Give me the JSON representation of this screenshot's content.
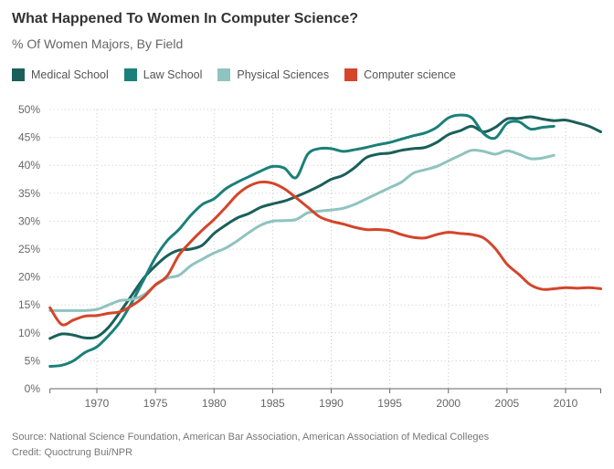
{
  "header": {
    "title": "What Happened To Women In Computer Science?",
    "subtitle": "% Of Women Majors, By Field"
  },
  "footer": {
    "source": "Source: National Science Foundation, American Bar Association, American Association of Medical Colleges",
    "credit": "Credit: Quoctrung Bui/NPR"
  },
  "chart_data": {
    "type": "line",
    "title": "What Happened To Women In Computer Science?",
    "subtitle": "% Of Women Majors, By Field",
    "xlabel": "",
    "ylabel": "",
    "xlim": [
      1966,
      2013
    ],
    "ylim": [
      0,
      50
    ],
    "grid": true,
    "legend_position": "top-left",
    "x_ticks": [
      1970,
      1975,
      1980,
      1985,
      1990,
      1995,
      2000,
      2005,
      2010
    ],
    "x_tick_labels": [
      "1970",
      "1975",
      "1980",
      "1985",
      "1990",
      "1995",
      "2000",
      "2005",
      "2010"
    ],
    "y_ticks": [
      0,
      5,
      10,
      15,
      20,
      25,
      30,
      35,
      40,
      45,
      50
    ],
    "y_tick_labels": [
      "0%",
      "5%",
      "10%",
      "15%",
      "20%",
      "25%",
      "30%",
      "35%",
      "40%",
      "45%",
      "50%"
    ],
    "series": [
      {
        "name": "Medical School",
        "color": "#1a5f5a",
        "x": [
          1966,
          1967,
          1968,
          1969,
          1970,
          1971,
          1972,
          1973,
          1974,
          1975,
          1976,
          1977,
          1978,
          1979,
          1980,
          1981,
          1982,
          1983,
          1984,
          1985,
          1986,
          1987,
          1988,
          1989,
          1990,
          1991,
          1992,
          1993,
          1994,
          1995,
          1996,
          1997,
          1998,
          1999,
          2000,
          2001,
          2002,
          2003,
          2004,
          2005,
          2006,
          2007,
          2008,
          2009,
          2010,
          2011,
          2012,
          2013
        ],
        "values": [
          9.0,
          9.8,
          9.6,
          9.1,
          9.3,
          11.0,
          13.8,
          16.8,
          19.8,
          22.0,
          23.8,
          24.8,
          25.0,
          25.7,
          27.8,
          29.3,
          30.6,
          31.4,
          32.5,
          33.1,
          33.6,
          34.4,
          35.3,
          36.3,
          37.5,
          38.2,
          39.6,
          41.4,
          42.0,
          42.2,
          42.7,
          43.0,
          43.2,
          44.1,
          45.5,
          46.2,
          47.0,
          46.0,
          46.8,
          48.3,
          48.4,
          48.7,
          48.3,
          48.0,
          48.1,
          47.6,
          47.0,
          46.0
        ]
      },
      {
        "name": "Law School",
        "color": "#1b8079",
        "x": [
          1966,
          1967,
          1968,
          1969,
          1970,
          1971,
          1972,
          1973,
          1974,
          1975,
          1976,
          1977,
          1978,
          1979,
          1980,
          1981,
          1982,
          1983,
          1984,
          1985,
          1986,
          1987,
          1988,
          1989,
          1990,
          1991,
          1992,
          1993,
          1994,
          1995,
          1996,
          1997,
          1998,
          1999,
          2000,
          2001,
          2002,
          2003,
          2004,
          2005,
          2006,
          2007,
          2008,
          2009
        ],
        "values": [
          4.0,
          4.2,
          5.0,
          6.5,
          7.5,
          9.5,
          12.0,
          15.5,
          19.5,
          23.5,
          26.5,
          28.5,
          31.0,
          33.0,
          34.0,
          35.8,
          37.0,
          38.0,
          39.0,
          39.8,
          39.5,
          37.8,
          42.0,
          43.0,
          43.0,
          42.5,
          42.8,
          43.2,
          43.7,
          44.1,
          44.7,
          45.3,
          45.8,
          46.8,
          48.5,
          49.0,
          48.5,
          45.7,
          44.9,
          47.5,
          47.8,
          46.5,
          46.8,
          47.0
        ]
      },
      {
        "name": "Physical Sciences",
        "color": "#8fc3bf",
        "x": [
          1966,
          1967,
          1968,
          1969,
          1970,
          1971,
          1972,
          1973,
          1974,
          1975,
          1976,
          1977,
          1978,
          1979,
          1980,
          1981,
          1982,
          1983,
          1984,
          1985,
          1986,
          1987,
          1988,
          1989,
          1990,
          1991,
          1992,
          1993,
          1994,
          1995,
          1996,
          1997,
          1998,
          1999,
          2000,
          2001,
          2002,
          2003,
          2004,
          2005,
          2006,
          2007,
          2008,
          2009
        ],
        "values": [
          14.0,
          14.0,
          14.0,
          14.0,
          14.2,
          15.0,
          15.8,
          16.0,
          16.8,
          18.5,
          19.8,
          20.3,
          22.0,
          23.2,
          24.3,
          25.2,
          26.5,
          28.0,
          29.3,
          30.0,
          30.1,
          30.3,
          31.5,
          31.8,
          32.0,
          32.3,
          33.0,
          34.0,
          35.0,
          36.0,
          37.0,
          38.6,
          39.2,
          39.8,
          40.8,
          41.8,
          42.7,
          42.5,
          42.0,
          42.6,
          42.0,
          41.2,
          41.3,
          41.8
        ]
      },
      {
        "name": "Computer science",
        "color": "#d4452b",
        "x": [
          1966,
          1967,
          1968,
          1969,
          1970,
          1971,
          1972,
          1973,
          1974,
          1975,
          1976,
          1977,
          1978,
          1979,
          1980,
          1981,
          1982,
          1983,
          1984,
          1985,
          1986,
          1987,
          1988,
          1989,
          1990,
          1991,
          1992,
          1993,
          1994,
          1995,
          1996,
          1997,
          1998,
          1999,
          2000,
          2001,
          2002,
          2003,
          2004,
          2005,
          2006,
          2007,
          2008,
          2009,
          2010,
          2011,
          2012,
          2013
        ],
        "values": [
          14.5,
          11.5,
          12.3,
          13.0,
          13.1,
          13.5,
          13.8,
          14.9,
          16.4,
          18.6,
          20.2,
          23.9,
          26.3,
          28.4,
          30.3,
          32.5,
          34.8,
          36.3,
          37.0,
          36.8,
          35.8,
          34.2,
          32.5,
          30.8,
          30.0,
          29.5,
          28.9,
          28.5,
          28.5,
          28.3,
          27.6,
          27.1,
          27.0,
          27.6,
          28.0,
          27.8,
          27.6,
          27.0,
          25.1,
          22.3,
          20.5,
          18.6,
          17.8,
          17.9,
          18.1,
          18.0,
          18.1,
          17.9
        ]
      }
    ]
  }
}
